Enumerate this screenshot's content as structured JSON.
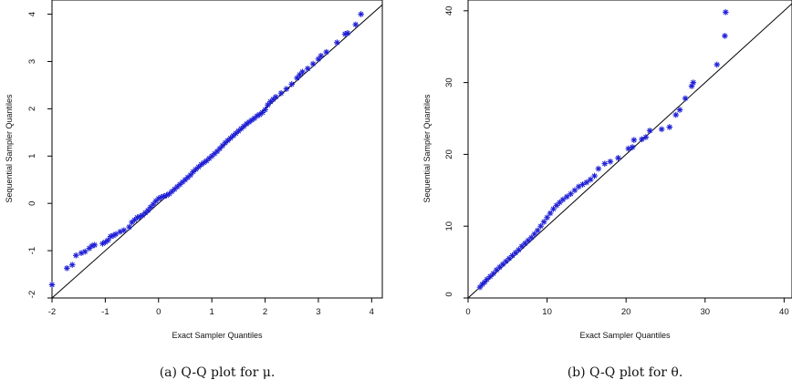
{
  "chart_data": [
    {
      "type": "scatter",
      "caption": "(a) Q-Q plot for μ.",
      "xlabel": "Exact Sampler Quantiles",
      "ylabel": "Sequential Sampler Quantiles",
      "xlim": [
        -2,
        4.2
      ],
      "ylim": [
        -2,
        4.3
      ],
      "xticks": [
        "-2",
        "-1",
        "0",
        "1",
        "2",
        "3",
        "4"
      ],
      "yticks": [
        "-2",
        "-1",
        "0",
        "1",
        "2",
        "3",
        "4"
      ],
      "xtick_values": [
        -2,
        -1,
        0,
        1,
        2,
        3,
        4
      ],
      "ytick_values": [
        -2,
        -1,
        0,
        1,
        2,
        3,
        4
      ],
      "marker": "asterisk",
      "marker_color": "#1f1fd6",
      "reference_line": "y = x",
      "grid": false,
      "points": [
        [
          -2.0,
          -1.72
        ],
        [
          -1.72,
          -1.37
        ],
        [
          -1.62,
          -1.3
        ],
        [
          -1.55,
          -1.1
        ],
        [
          -1.45,
          -1.05
        ],
        [
          -1.38,
          -1.02
        ],
        [
          -1.3,
          -0.95
        ],
        [
          -1.25,
          -0.9
        ],
        [
          -1.2,
          -0.88
        ],
        [
          -1.05,
          -0.85
        ],
        [
          -1.0,
          -0.82
        ],
        [
          -0.95,
          -0.78
        ],
        [
          -0.9,
          -0.7
        ],
        [
          -0.85,
          -0.68
        ],
        [
          -0.8,
          -0.65
        ],
        [
          -0.72,
          -0.6
        ],
        [
          -0.65,
          -0.57
        ],
        [
          -0.55,
          -0.5
        ],
        [
          -0.5,
          -0.4
        ],
        [
          -0.45,
          -0.35
        ],
        [
          -0.4,
          -0.3
        ],
        [
          -0.35,
          -0.28
        ],
        [
          -0.3,
          -0.25
        ],
        [
          -0.25,
          -0.2
        ],
        [
          -0.2,
          -0.15
        ],
        [
          -0.15,
          -0.08
        ],
        [
          -0.1,
          -0.02
        ],
        [
          -0.05,
          0.05
        ],
        [
          0.0,
          0.1
        ],
        [
          0.05,
          0.13
        ],
        [
          0.1,
          0.15
        ],
        [
          0.15,
          0.17
        ],
        [
          0.2,
          0.2
        ],
        [
          0.25,
          0.25
        ],
        [
          0.3,
          0.3
        ],
        [
          0.35,
          0.35
        ],
        [
          0.4,
          0.4
        ],
        [
          0.45,
          0.45
        ],
        [
          0.5,
          0.5
        ],
        [
          0.55,
          0.55
        ],
        [
          0.6,
          0.6
        ],
        [
          0.65,
          0.67
        ],
        [
          0.7,
          0.72
        ],
        [
          0.75,
          0.77
        ],
        [
          0.8,
          0.82
        ],
        [
          0.85,
          0.86
        ],
        [
          0.9,
          0.9
        ],
        [
          0.95,
          0.95
        ],
        [
          1.0,
          1.0
        ],
        [
          1.05,
          1.05
        ],
        [
          1.1,
          1.1
        ],
        [
          1.15,
          1.16
        ],
        [
          1.2,
          1.22
        ],
        [
          1.25,
          1.28
        ],
        [
          1.3,
          1.33
        ],
        [
          1.35,
          1.38
        ],
        [
          1.4,
          1.43
        ],
        [
          1.45,
          1.48
        ],
        [
          1.5,
          1.53
        ],
        [
          1.55,
          1.58
        ],
        [
          1.6,
          1.63
        ],
        [
          1.65,
          1.68
        ],
        [
          1.7,
          1.72
        ],
        [
          1.75,
          1.76
        ],
        [
          1.8,
          1.8
        ],
        [
          1.85,
          1.85
        ],
        [
          1.9,
          1.88
        ],
        [
          1.95,
          1.92
        ],
        [
          2.0,
          1.98
        ],
        [
          2.05,
          2.08
        ],
        [
          2.1,
          2.15
        ],
        [
          2.15,
          2.2
        ],
        [
          2.2,
          2.25
        ],
        [
          2.3,
          2.33
        ],
        [
          2.4,
          2.42
        ],
        [
          2.5,
          2.52
        ],
        [
          2.6,
          2.65
        ],
        [
          2.65,
          2.72
        ],
        [
          2.7,
          2.78
        ],
        [
          2.8,
          2.85
        ],
        [
          2.9,
          2.95
        ],
        [
          3.0,
          3.05
        ],
        [
          3.05,
          3.12
        ],
        [
          3.15,
          3.2
        ],
        [
          3.35,
          3.4
        ],
        [
          3.5,
          3.58
        ],
        [
          3.55,
          3.6
        ],
        [
          3.7,
          3.78
        ],
        [
          3.8,
          4.0
        ]
      ]
    },
    {
      "type": "scatter",
      "caption": "(b) Q-Q plot for θ.",
      "xlabel": "Exact Sampler Quantiles",
      "ylabel": "Sequential Sampler Quantiles",
      "xlim": [
        0,
        41
      ],
      "ylim": [
        0,
        41.5
      ],
      "xticks": [
        "0",
        "10",
        "20",
        "30",
        "40"
      ],
      "yticks": [
        "0",
        "10",
        "20",
        "30",
        "40"
      ],
      "xtick_values": [
        0,
        10,
        20,
        30,
        40
      ],
      "ytick_values": [
        0,
        10,
        20,
        30,
        40
      ],
      "marker": "asterisk",
      "marker_color": "#1f1fd6",
      "reference_line": "y = x",
      "grid": false,
      "points": [
        [
          1.5,
          1.5
        ],
        [
          1.8,
          1.9
        ],
        [
          2.1,
          2.2
        ],
        [
          2.4,
          2.6
        ],
        [
          2.8,
          3.0
        ],
        [
          3.2,
          3.4
        ],
        [
          3.6,
          3.9
        ],
        [
          4.0,
          4.3
        ],
        [
          4.4,
          4.7
        ],
        [
          4.8,
          5.1
        ],
        [
          5.2,
          5.5
        ],
        [
          5.6,
          5.9
        ],
        [
          6.0,
          6.3
        ],
        [
          6.4,
          6.7
        ],
        [
          6.8,
          7.2
        ],
        [
          7.2,
          7.6
        ],
        [
          7.6,
          8.0
        ],
        [
          8.0,
          8.4
        ],
        [
          8.4,
          8.9
        ],
        [
          8.8,
          9.4
        ],
        [
          9.2,
          10.0
        ],
        [
          9.6,
          10.6
        ],
        [
          10.0,
          11.2
        ],
        [
          10.4,
          11.8
        ],
        [
          10.8,
          12.4
        ],
        [
          11.2,
          12.9
        ],
        [
          11.6,
          13.3
        ],
        [
          12.0,
          13.7
        ],
        [
          12.5,
          14.1
        ],
        [
          13.0,
          14.5
        ],
        [
          13.5,
          15.0
        ],
        [
          14.0,
          15.5
        ],
        [
          14.5,
          15.8
        ],
        [
          15.0,
          16.1
        ],
        [
          15.5,
          16.5
        ],
        [
          16.0,
          17.0
        ],
        [
          16.5,
          18.0
        ],
        [
          17.3,
          18.7
        ],
        [
          18.0,
          19.0
        ],
        [
          19.0,
          19.5
        ],
        [
          20.3,
          20.8
        ],
        [
          20.8,
          21.0
        ],
        [
          21.0,
          22.0
        ],
        [
          22.0,
          22.1
        ],
        [
          22.5,
          22.4
        ],
        [
          23.0,
          23.3
        ],
        [
          24.5,
          23.5
        ],
        [
          25.5,
          23.8
        ],
        [
          26.3,
          25.5
        ],
        [
          26.8,
          26.2
        ],
        [
          27.5,
          27.8
        ],
        [
          28.3,
          29.5
        ],
        [
          28.5,
          30.0
        ],
        [
          31.5,
          32.5
        ],
        [
          32.5,
          36.5
        ],
        [
          32.6,
          39.8
        ]
      ]
    }
  ]
}
